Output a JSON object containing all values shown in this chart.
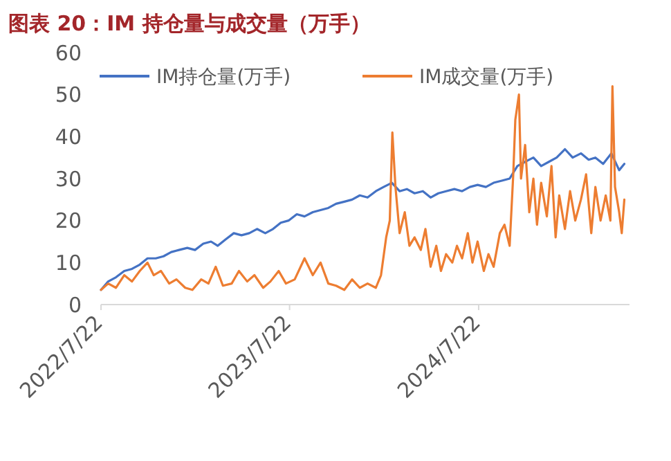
{
  "chart_data": {
    "type": "line",
    "title": "图表 20：IM 持仓量与成交量（万手）",
    "xlim": [
      "2022-07-22",
      "2025-05-10"
    ],
    "xticks": [
      {
        "value": "2022-07-22",
        "label": "2022/7/22"
      },
      {
        "value": "2023-07-22",
        "label": "2023/7/22"
      },
      {
        "value": "2024-07-22",
        "label": "2024/7/22"
      }
    ],
    "ylim": [
      0,
      60
    ],
    "yticks": [
      0,
      10,
      20,
      30,
      40,
      50,
      60
    ],
    "grid": false,
    "legend": "top",
    "line_style": "solid",
    "series": [
      {
        "name": "IM持仓量(万手)",
        "color": "#4472c4",
        "x": [
          "2022-07-22",
          "2022-08-05",
          "2022-08-20",
          "2022-09-05",
          "2022-09-20",
          "2022-10-05",
          "2022-10-20",
          "2022-11-05",
          "2022-11-20",
          "2022-12-05",
          "2022-12-20",
          "2023-01-05",
          "2023-01-20",
          "2023-02-05",
          "2023-02-20",
          "2023-03-05",
          "2023-03-20",
          "2023-04-05",
          "2023-04-20",
          "2023-05-05",
          "2023-05-20",
          "2023-06-05",
          "2023-06-20",
          "2023-07-05",
          "2023-07-20",
          "2023-08-05",
          "2023-08-20",
          "2023-09-05",
          "2023-09-20",
          "2023-10-05",
          "2023-10-20",
          "2023-11-05",
          "2023-11-20",
          "2023-12-05",
          "2023-12-20",
          "2024-01-05",
          "2024-01-20",
          "2024-02-05",
          "2024-02-20",
          "2024-03-05",
          "2024-03-20",
          "2024-04-05",
          "2024-04-20",
          "2024-05-05",
          "2024-05-20",
          "2024-06-05",
          "2024-06-20",
          "2024-07-05",
          "2024-07-20",
          "2024-08-05",
          "2024-08-20",
          "2024-09-05",
          "2024-09-20",
          "2024-10-05",
          "2024-10-20",
          "2024-11-05",
          "2024-11-20",
          "2024-12-05",
          "2024-12-20",
          "2025-01-05",
          "2025-01-20",
          "2025-02-05",
          "2025-02-20",
          "2025-03-05",
          "2025-03-20",
          "2025-04-05",
          "2025-04-20",
          "2025-04-30"
        ],
        "values": [
          3.5,
          5.5,
          6.5,
          8,
          8.5,
          9.5,
          11,
          11,
          11.5,
          12.5,
          13,
          13.5,
          13,
          14.5,
          15,
          14,
          15.5,
          17,
          16.5,
          17,
          18,
          17,
          18,
          19.5,
          20,
          21.5,
          21,
          22,
          22.5,
          23,
          24,
          24.5,
          25,
          26,
          25.5,
          27,
          28,
          29,
          27,
          27.5,
          26.5,
          27,
          25.5,
          26.5,
          27,
          27.5,
          27,
          28,
          28.5,
          28,
          29,
          29.5,
          30,
          33,
          34,
          35,
          33,
          34,
          35,
          37,
          35,
          36,
          34.5,
          35,
          33.5,
          36,
          32,
          33.5
        ]
      },
      {
        "name": "IM成交量(万手)",
        "color": "#ed7d31",
        "x": [
          "2022-07-22",
          "2022-08-05",
          "2022-08-20",
          "2022-09-05",
          "2022-09-20",
          "2022-10-05",
          "2022-10-20",
          "2022-11-01",
          "2022-11-15",
          "2022-12-01",
          "2022-12-15",
          "2023-01-01",
          "2023-01-15",
          "2023-02-01",
          "2023-02-15",
          "2023-03-01",
          "2023-03-15",
          "2023-04-01",
          "2023-04-15",
          "2023-05-01",
          "2023-05-15",
          "2023-06-01",
          "2023-06-15",
          "2023-07-01",
          "2023-07-15",
          "2023-08-01",
          "2023-08-20",
          "2023-09-05",
          "2023-09-20",
          "2023-10-05",
          "2023-10-20",
          "2023-11-05",
          "2023-11-20",
          "2023-12-05",
          "2023-12-20",
          "2024-01-05",
          "2024-01-15",
          "2024-01-25",
          "2024-02-01",
          "2024-02-06",
          "2024-02-12",
          "2024-02-20",
          "2024-03-01",
          "2024-03-10",
          "2024-03-20",
          "2024-04-01",
          "2024-04-10",
          "2024-04-20",
          "2024-05-01",
          "2024-05-10",
          "2024-05-20",
          "2024-06-01",
          "2024-06-10",
          "2024-06-20",
          "2024-07-01",
          "2024-07-10",
          "2024-07-20",
          "2024-08-01",
          "2024-08-10",
          "2024-08-20",
          "2024-09-01",
          "2024-09-10",
          "2024-09-20",
          "2024-09-27",
          "2024-10-01",
          "2024-10-08",
          "2024-10-12",
          "2024-10-20",
          "2024-10-28",
          "2024-11-05",
          "2024-11-12",
          "2024-11-20",
          "2024-12-01",
          "2024-12-10",
          "2024-12-18",
          "2024-12-25",
          "2025-01-05",
          "2025-01-15",
          "2025-01-25",
          "2025-02-05",
          "2025-02-15",
          "2025-02-25",
          "2025-03-05",
          "2025-03-15",
          "2025-03-25",
          "2025-04-03",
          "2025-04-07",
          "2025-04-12",
          "2025-04-20",
          "2025-04-25",
          "2025-04-30"
        ],
        "values": [
          3.5,
          5,
          4,
          7,
          5.5,
          8,
          10,
          7,
          8,
          5,
          6,
          4,
          3.5,
          6,
          5,
          9,
          4.5,
          5,
          8,
          5.5,
          7,
          4,
          5.5,
          8,
          5,
          6,
          11,
          7,
          10,
          5,
          4.5,
          3.5,
          6,
          4,
          5,
          4,
          7,
          16,
          20,
          41,
          28,
          17,
          22,
          14,
          16,
          13,
          18,
          9,
          14,
          8,
          12,
          10,
          14,
          11,
          17,
          10,
          15,
          8,
          12,
          9,
          17,
          19,
          14,
          31,
          44,
          50,
          30,
          38,
          22,
          30,
          19,
          29,
          21,
          33,
          16,
          26,
          18,
          27,
          20,
          25,
          31,
          17,
          28,
          20,
          26,
          20,
          52,
          28,
          22,
          17,
          25
        ]
      }
    ]
  }
}
